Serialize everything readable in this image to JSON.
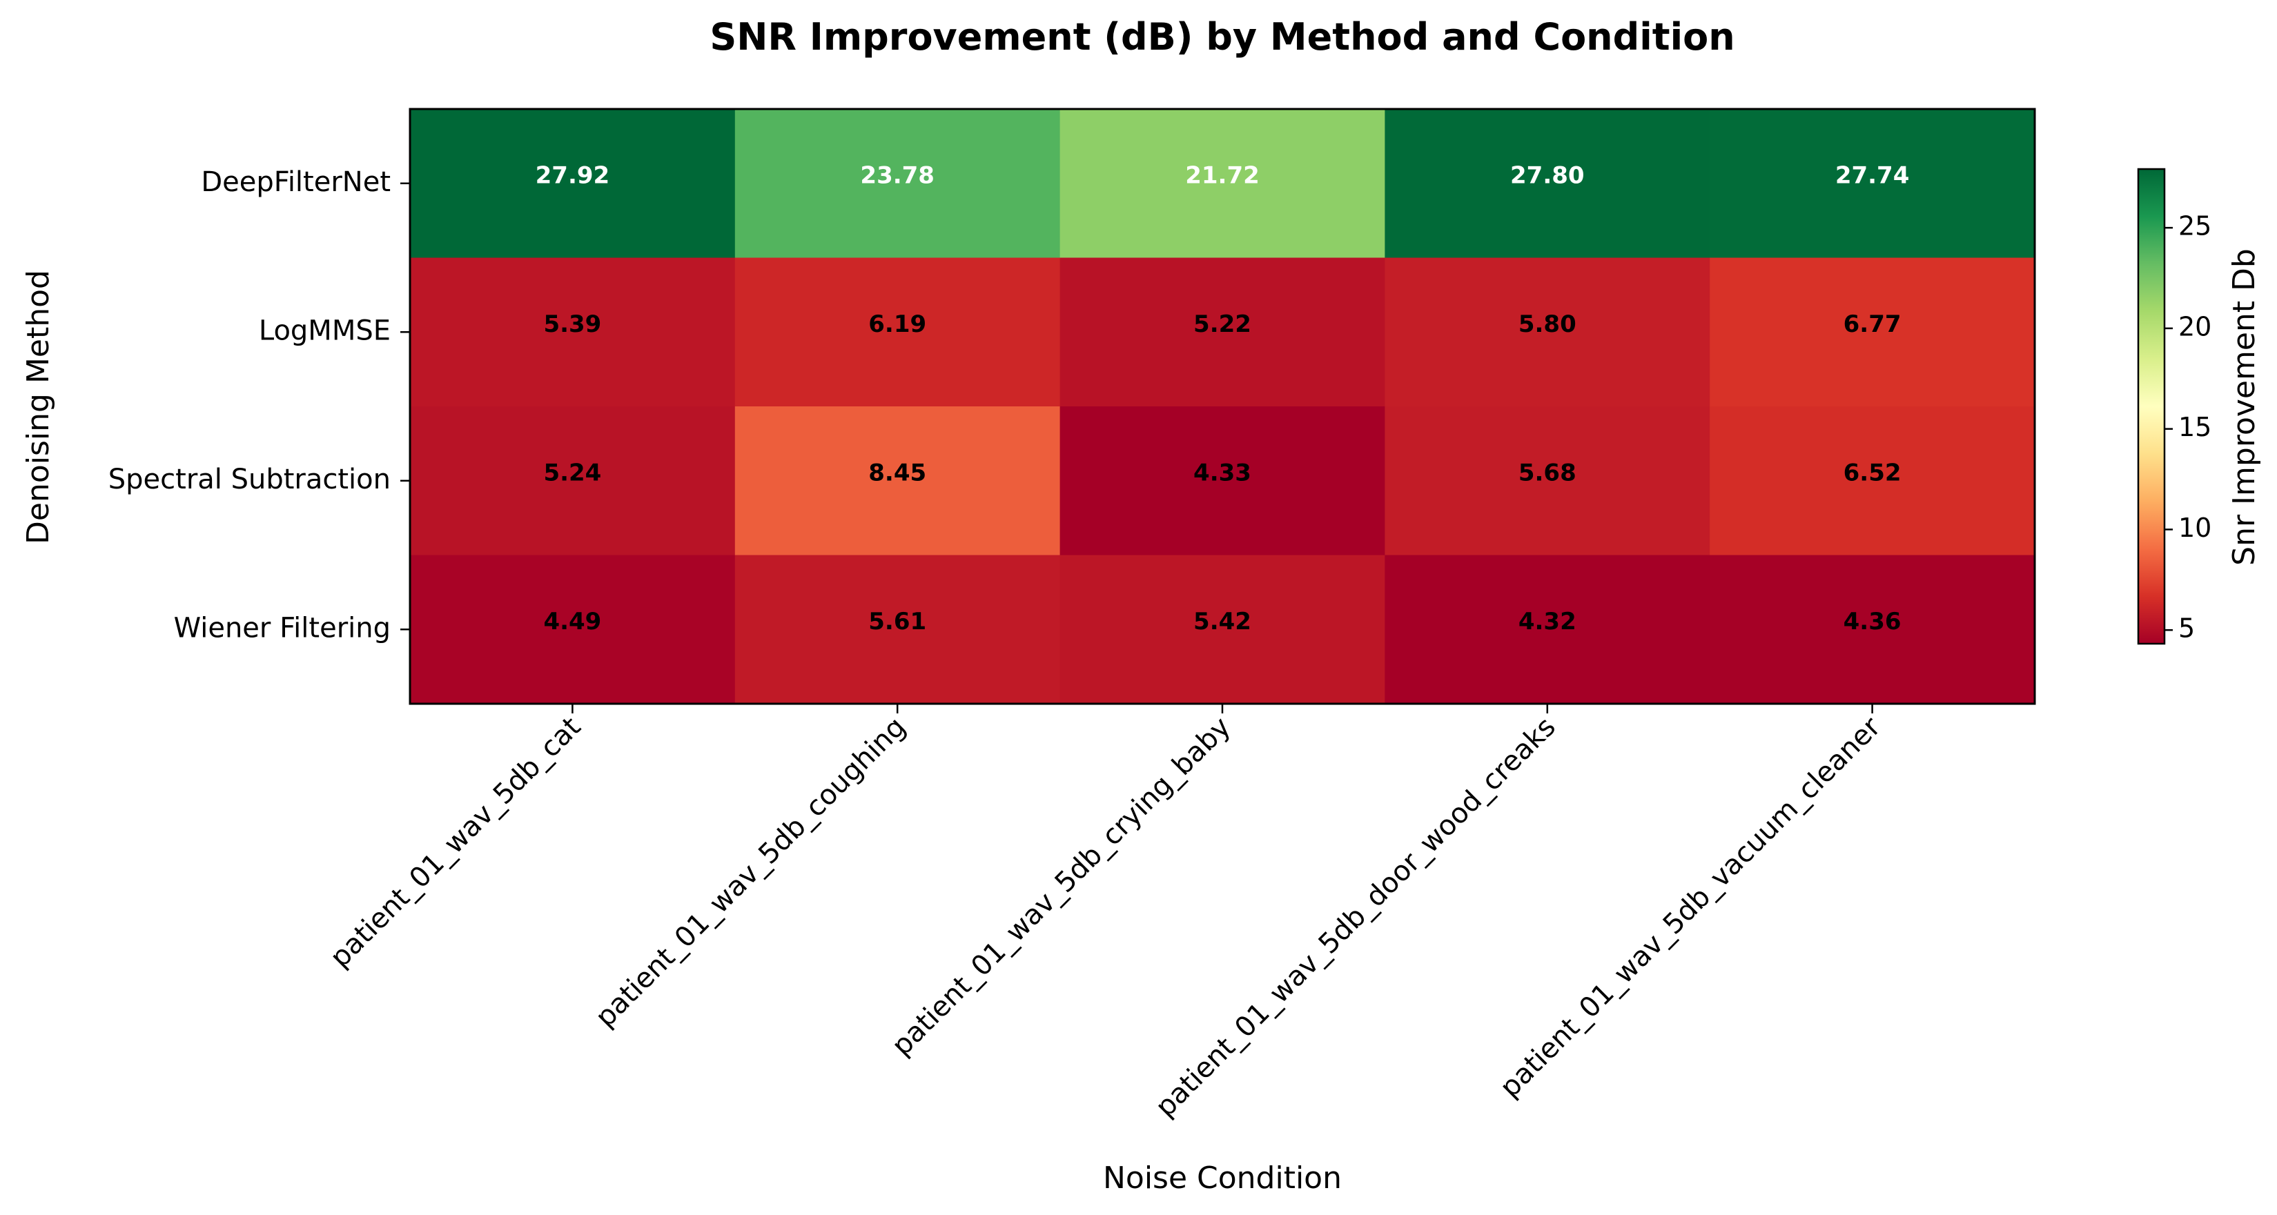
{
  "chart_data": {
    "type": "heatmap",
    "title": "SNR Improvement (dB) by Method and Condition",
    "xlabel": "Noise Condition",
    "ylabel": "Denoising Method",
    "x_categories": [
      "patient_01_wav_5db_cat",
      "patient_01_wav_5db_coughing",
      "patient_01_wav_5db_crying_baby",
      "patient_01_wav_5db_door_wood_creaks",
      "patient_01_wav_5db_vacuum_cleaner"
    ],
    "y_categories": [
      "DeepFilterNet",
      "LogMMSE",
      "Spectral Subtraction",
      "Wiener Filtering"
    ],
    "values": [
      [
        27.92,
        23.78,
        21.72,
        27.8,
        27.74
      ],
      [
        5.39,
        6.19,
        5.22,
        5.8,
        6.77
      ],
      [
        5.24,
        8.45,
        4.33,
        5.68,
        6.52
      ],
      [
        4.49,
        5.61,
        5.42,
        4.32,
        4.36
      ]
    ],
    "colorbar": {
      "label": "Snr Improvement Db",
      "range": [
        4.32,
        27.92
      ],
      "ticks": [
        5,
        10,
        15,
        20,
        25
      ],
      "colormap": "RdYlGn"
    },
    "grid": false
  }
}
